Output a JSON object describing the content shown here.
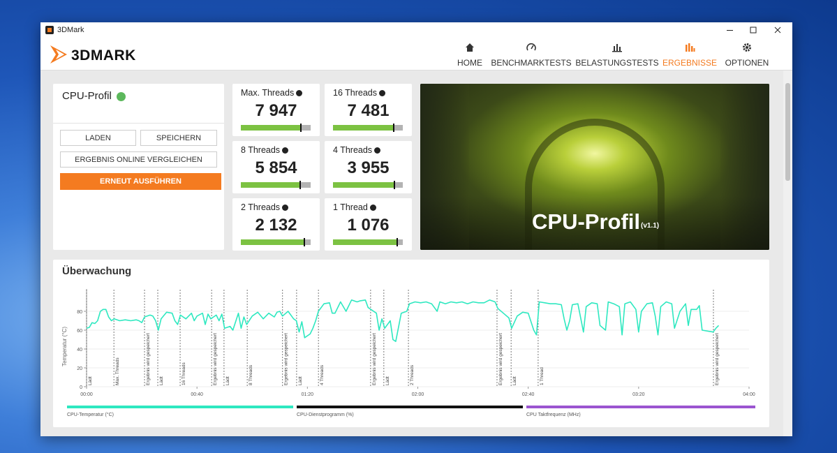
{
  "window": {
    "title": "3DMark"
  },
  "logo": "3DMARK",
  "nav": {
    "items": [
      "HOME",
      "BENCHMARKTESTS",
      "BELASTUNGSTESTS",
      "ERGEBNISSE",
      "OPTIONEN"
    ],
    "active_index": 3
  },
  "profile": {
    "title": "CPU-Profil",
    "buttons": [
      "LADEN",
      "SPEICHERN",
      "ERGEBNIS ONLINE VERGLEICHEN",
      "ERNEUT AUSFÜHREN"
    ]
  },
  "scores": [
    {
      "label": "Max. Threads",
      "score": "7 947",
      "bar": 86
    },
    {
      "label": "16 Threads",
      "score": "7 481",
      "bar": 87
    },
    {
      "label": "8 Threads",
      "score": "5 854",
      "bar": 85
    },
    {
      "label": "4 Threads",
      "score": "3 955",
      "bar": 88
    },
    {
      "label": "2 Threads",
      "score": "2 132",
      "bar": 91
    },
    {
      "label": "1 Thread",
      "score": "1 076",
      "bar": 92
    }
  ],
  "hero": {
    "title": "CPU-Profil",
    "version": "(v1.1)"
  },
  "monitoring": {
    "title": "Überwachung",
    "chart": {
      "type": "line",
      "y_label": "Temperatur (°C)",
      "xlim": [
        0,
        240
      ],
      "ylim": [
        0,
        100
      ],
      "xticks": [
        {
          "value": 0,
          "label": "00:00"
        },
        {
          "value": 40,
          "label": "00:40"
        },
        {
          "value": 80,
          "label": "01:20"
        },
        {
          "value": 120,
          "label": "02:00"
        },
        {
          "value": 160,
          "label": "02:40"
        },
        {
          "value": 200,
          "label": "03:20"
        },
        {
          "value": 240,
          "label": "04:00"
        }
      ],
      "yticks": [
        0,
        20,
        40,
        60,
        80
      ],
      "grid": true,
      "x": [
        0,
        1,
        2,
        3,
        4,
        5,
        6,
        7,
        8,
        9,
        10,
        12,
        14,
        16,
        18,
        19,
        20,
        21,
        23,
        24,
        25,
        26,
        27,
        29,
        31,
        32,
        33,
        34,
        36,
        38,
        39,
        40,
        42,
        43,
        44,
        45,
        47,
        48,
        49,
        50,
        52,
        53,
        55,
        56,
        57,
        58,
        60,
        62,
        64,
        66,
        68,
        69,
        70,
        71,
        73,
        75,
        76,
        77,
        78,
        79,
        81,
        82,
        83,
        84,
        86,
        88,
        89,
        90,
        92,
        94,
        96,
        98,
        99,
        101,
        102,
        103,
        105,
        106,
        107,
        108,
        110,
        111,
        112,
        114,
        116,
        117,
        119,
        121,
        123,
        125,
        127,
        128,
        130,
        132,
        134,
        136,
        138,
        140,
        142,
        144,
        146,
        148,
        149,
        151,
        153,
        154,
        156,
        158,
        160,
        162,
        163,
        164,
        166,
        168,
        170,
        172,
        173,
        174,
        175,
        176,
        178,
        180,
        181,
        183,
        185,
        186,
        188,
        189,
        191,
        193,
        194,
        195,
        197,
        199,
        200,
        201,
        203,
        205,
        206,
        207,
        208,
        210,
        212,
        213,
        215,
        217,
        218,
        219,
        221,
        222,
        223,
        227,
        228,
        229
      ],
      "series": [
        {
          "name": "CPU-Temperatur (°C)",
          "color": "#2ee8c0",
          "values": [
            62,
            63,
            68,
            67,
            70,
            80,
            82,
            82,
            74,
            70,
            72,
            70,
            71,
            70,
            71,
            70,
            68,
            74,
            76,
            75,
            70,
            60,
            72,
            79,
            78,
            70,
            66,
            76,
            72,
            78,
            70,
            75,
            78,
            66,
            77,
            72,
            76,
            70,
            77,
            62,
            64,
            60,
            78,
            62,
            74,
            66,
            75,
            79,
            72,
            78,
            74,
            79,
            80,
            75,
            80,
            72,
            70,
            58,
            69,
            52,
            56,
            62,
            70,
            80,
            88,
            89,
            78,
            78,
            90,
            80,
            92,
            90,
            91,
            92,
            84,
            82,
            78,
            60,
            72,
            62,
            70,
            50,
            48,
            78,
            80,
            88,
            90,
            89,
            90,
            88,
            80,
            90,
            88,
            90,
            89,
            90,
            88,
            90,
            89,
            89,
            92,
            90,
            83,
            78,
            73,
            62,
            75,
            79,
            78,
            60,
            55,
            90,
            89,
            88,
            88,
            87,
            72,
            60,
            70,
            87,
            88,
            58,
            85,
            89,
            88,
            65,
            60,
            90,
            88,
            85,
            55,
            88,
            90,
            82,
            58,
            80,
            88,
            89,
            75,
            55,
            85,
            90,
            88,
            62,
            80,
            88,
            65,
            82,
            82,
            86,
            60,
            58,
            62,
            65
          ]
        }
      ],
      "other_series": [
        {
          "name": "CPU-Dienstprogramm (%)",
          "color": "#111111"
        },
        {
          "name": "CPU Taktfrequenz (MHz)",
          "color": "#9b55d0"
        }
      ],
      "events": [
        {
          "x": 0,
          "label": "Lädt"
        },
        {
          "x": 9.9,
          "label": "Max. Threads"
        },
        {
          "x": 21,
          "label": "Ergebnis wird gespeichert"
        },
        {
          "x": 25.8,
          "label": "Lädt"
        },
        {
          "x": 33.9,
          "label": "16 Threads"
        },
        {
          "x": 45.3,
          "label": "Ergebnis wird gespeichert"
        },
        {
          "x": 49.8,
          "label": "Lädt"
        },
        {
          "x": 58.2,
          "label": "8 Threads"
        },
        {
          "x": 71,
          "label": "Ergebnis wird gespeichert"
        },
        {
          "x": 76.1,
          "label": "Lädt"
        },
        {
          "x": 84,
          "label": "4 Threads"
        },
        {
          "x": 102.9,
          "label": "Ergebnis wird gespeichert"
        },
        {
          "x": 107.7,
          "label": "Lädt"
        },
        {
          "x": 116.6,
          "label": "2 Threads"
        },
        {
          "x": 148.7,
          "label": "Ergebnis wird gespeichert"
        },
        {
          "x": 153.8,
          "label": "Lädt"
        },
        {
          "x": 163.6,
          "label": "1 Thread"
        },
        {
          "x": 227.1,
          "label": "Ergebnis wird gespeichert"
        }
      ]
    }
  }
}
